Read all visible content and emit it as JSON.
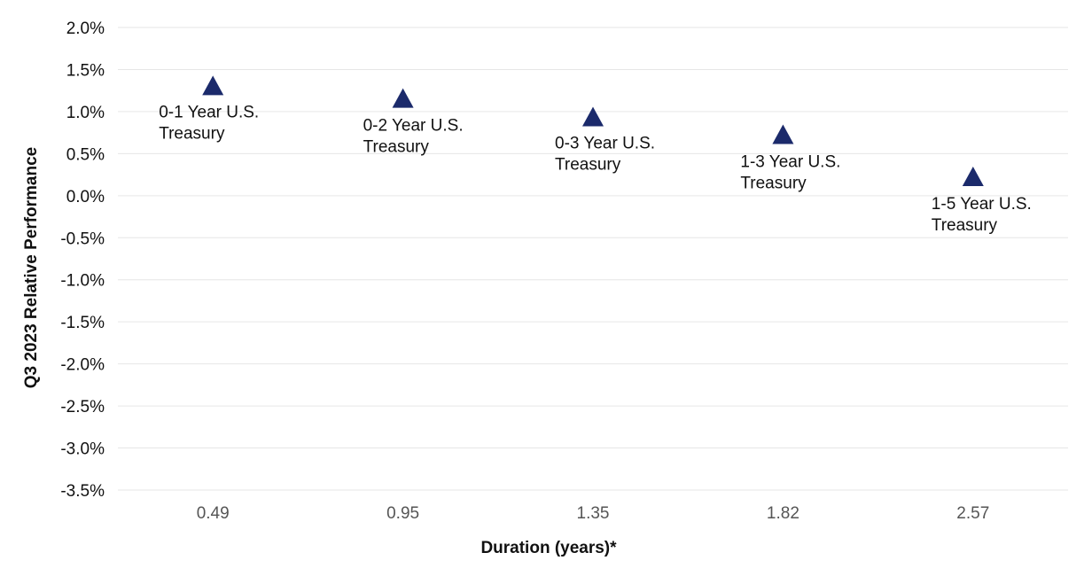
{
  "chart_data": {
    "type": "scatter",
    "xlabel": "Duration (years)*",
    "ylabel": "Q3 2023 Relative Performance",
    "categories": [
      "0.49",
      "0.95",
      "1.35",
      "1.82",
      "2.57"
    ],
    "y_ticks": [
      "2.0%",
      "1.5%",
      "1.0%",
      "0.5%",
      "0.0%",
      "-0.5%",
      "-1.0%",
      "-1.5%",
      "-2.0%",
      "-2.5%",
      "-3.0%",
      "-3.5%"
    ],
    "ylim": [
      -3.5,
      2.0
    ],
    "grid": true,
    "marker": "triangle",
    "marker_color": "#1b2a6b",
    "points": [
      {
        "x": "0.49",
        "y": 1.3,
        "label_line1": "0-1 Year U.S.",
        "label_line2": "Treasury"
      },
      {
        "x": "0.95",
        "y": 1.15,
        "label_line1": "0-2 Year U.S.",
        "label_line2": "Treasury"
      },
      {
        "x": "1.35",
        "y": 0.93,
        "label_line1": "0-3 Year U.S.",
        "label_line2": "Treasury"
      },
      {
        "x": "1.82",
        "y": 0.72,
        "label_line1": "1-3 Year U.S.",
        "label_line2": "Treasury"
      },
      {
        "x": "2.57",
        "y": 0.22,
        "label_line1": "1-5 Year U.S.",
        "label_line2": "Treasury"
      }
    ]
  }
}
